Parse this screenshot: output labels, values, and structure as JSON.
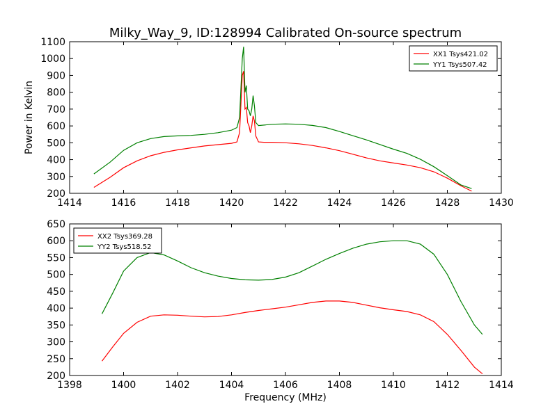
{
  "title": "Milky_Way_9, ID:128994 Calibrated On-source spectrum",
  "chart_data": [
    {
      "type": "line",
      "ylabel": "Power in Kelvin",
      "xlabel": "",
      "xlim": [
        1414,
        1430
      ],
      "ylim": [
        200,
        1100
      ],
      "xticks": [
        1414,
        1416,
        1418,
        1420,
        1422,
        1424,
        1426,
        1428,
        1430
      ],
      "yticks": [
        200,
        300,
        400,
        500,
        600,
        700,
        800,
        900,
        1000,
        1100
      ],
      "legend_position": "top-right",
      "series": [
        {
          "name": "XX1 Tsys421.02",
          "color": "#ff0000",
          "x": [
            1414.9,
            1415.5,
            1416,
            1416.5,
            1417,
            1417.5,
            1418,
            1418.5,
            1419,
            1419.5,
            1420,
            1420.2,
            1420.3,
            1420.4,
            1420.45,
            1420.5,
            1420.55,
            1420.6,
            1420.65,
            1420.7,
            1420.75,
            1420.8,
            1420.85,
            1420.9,
            1421.0,
            1421.2,
            1421.5,
            1422,
            1422.5,
            1423,
            1423.5,
            1424,
            1424.5,
            1425,
            1425.5,
            1426,
            1426.5,
            1427,
            1427.5,
            1428,
            1428.5,
            1428.9
          ],
          "y": [
            235,
            295,
            352,
            393,
            423,
            443,
            458,
            470,
            481,
            489,
            497,
            505,
            560,
            900,
            925,
            700,
            710,
            620,
            600,
            560,
            600,
            660,
            630,
            540,
            505,
            503,
            503,
            500,
            494,
            484,
            470,
            453,
            432,
            410,
            393,
            380,
            368,
            352,
            328,
            290,
            245,
            213
          ]
        },
        {
          "name": "YY1 Tsys507.42",
          "color": "#008000",
          "x": [
            1414.9,
            1415.5,
            1416,
            1416.5,
            1417,
            1417.5,
            1418,
            1418.5,
            1419,
            1419.5,
            1420,
            1420.2,
            1420.3,
            1420.4,
            1420.45,
            1420.5,
            1420.55,
            1420.6,
            1420.65,
            1420.7,
            1420.75,
            1420.8,
            1420.85,
            1420.9,
            1421.0,
            1421.2,
            1421.5,
            1422,
            1422.5,
            1423,
            1423.5,
            1424,
            1424.5,
            1425,
            1425.5,
            1426,
            1426.5,
            1427,
            1427.5,
            1428,
            1428.5,
            1428.9
          ],
          "y": [
            315,
            385,
            455,
            500,
            525,
            537,
            541,
            544,
            550,
            560,
            575,
            590,
            650,
            1000,
            1070,
            800,
            840,
            700,
            690,
            660,
            700,
            780,
            720,
            620,
            602,
            605,
            610,
            612,
            610,
            603,
            590,
            567,
            542,
            517,
            490,
            462,
            437,
            402,
            358,
            305,
            250,
            228
          ]
        }
      ]
    },
    {
      "type": "line",
      "xlabel": "Frequency (MHz)",
      "ylabel": "",
      "xlim": [
        1398,
        1414
      ],
      "ylim": [
        200,
        650
      ],
      "xticks": [
        1398,
        1400,
        1402,
        1404,
        1406,
        1408,
        1410,
        1412,
        1414
      ],
      "yticks": [
        200,
        250,
        300,
        350,
        400,
        450,
        500,
        550,
        600,
        650
      ],
      "legend_position": "top-left",
      "series": [
        {
          "name": "XX2 Tsys369.28",
          "color": "#ff0000",
          "x": [
            1399.2,
            1399.6,
            1400,
            1400.5,
            1401,
            1401.5,
            1402,
            1402.5,
            1403,
            1403.5,
            1404,
            1404.5,
            1405,
            1405.5,
            1406,
            1406.5,
            1407,
            1407.5,
            1408,
            1408.5,
            1409,
            1409.5,
            1410,
            1410.5,
            1411,
            1411.5,
            1412,
            1412.5,
            1413,
            1413.3
          ],
          "y": [
            243,
            285,
            325,
            358,
            376,
            380,
            379,
            376,
            374,
            375,
            380,
            387,
            393,
            398,
            403,
            410,
            417,
            421,
            421,
            417,
            409,
            401,
            395,
            390,
            380,
            360,
            322,
            275,
            225,
            205
          ]
        },
        {
          "name": "YY2 Tsys518.52",
          "color": "#008000",
          "x": [
            1399.2,
            1399.6,
            1400,
            1400.5,
            1401,
            1401.5,
            1402,
            1402.5,
            1403,
            1403.5,
            1404,
            1404.5,
            1405,
            1405.5,
            1406,
            1406.5,
            1407,
            1407.5,
            1408,
            1408.5,
            1409,
            1409.5,
            1410,
            1410.5,
            1411,
            1411.5,
            1412,
            1412.5,
            1413,
            1413.3
          ],
          "y": [
            383,
            445,
            510,
            550,
            565,
            558,
            540,
            520,
            505,
            495,
            488,
            484,
            483,
            485,
            492,
            505,
            525,
            545,
            562,
            578,
            590,
            597,
            600,
            600,
            590,
            560,
            500,
            420,
            350,
            322
          ]
        }
      ]
    }
  ]
}
